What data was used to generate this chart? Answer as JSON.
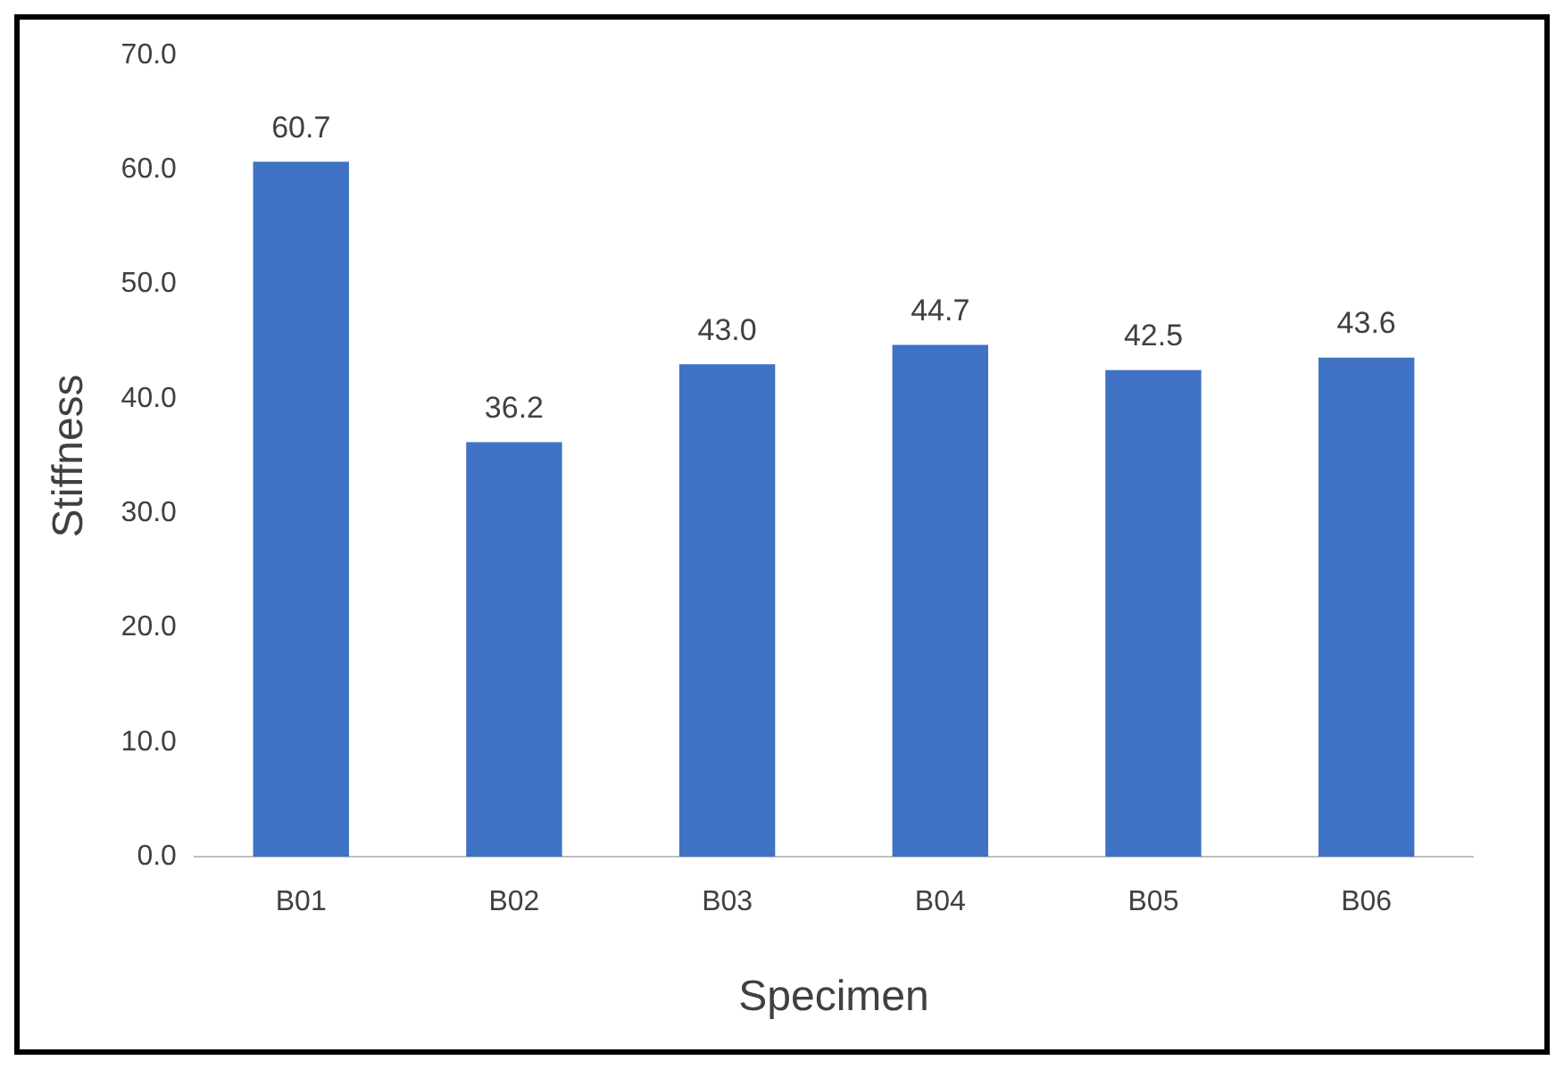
{
  "chart_data": {
    "type": "bar",
    "xlabel": "Specimen",
    "ylabel": "Stiffness",
    "categories": [
      "B01",
      "B02",
      "B03",
      "B04",
      "B05",
      "B06"
    ],
    "values": [
      60.7,
      36.2,
      43.0,
      44.7,
      42.5,
      43.6
    ],
    "value_labels": [
      "60.7",
      "36.2",
      "43.0",
      "44.7",
      "42.5",
      "43.6"
    ],
    "color": "#3f72c4",
    "ylim": [
      0,
      70
    ],
    "yticks": [
      {
        "value": 0,
        "label": "0.0"
      },
      {
        "value": 10,
        "label": "10.0"
      },
      {
        "value": 20,
        "label": "20.0"
      },
      {
        "value": 30,
        "label": "30.0"
      },
      {
        "value": 40,
        "label": "40.0"
      },
      {
        "value": 50,
        "label": "50.0"
      },
      {
        "value": 60,
        "label": "60.0"
      },
      {
        "value": 70,
        "label": "70.0"
      }
    ],
    "grid": false,
    "legend": false
  }
}
